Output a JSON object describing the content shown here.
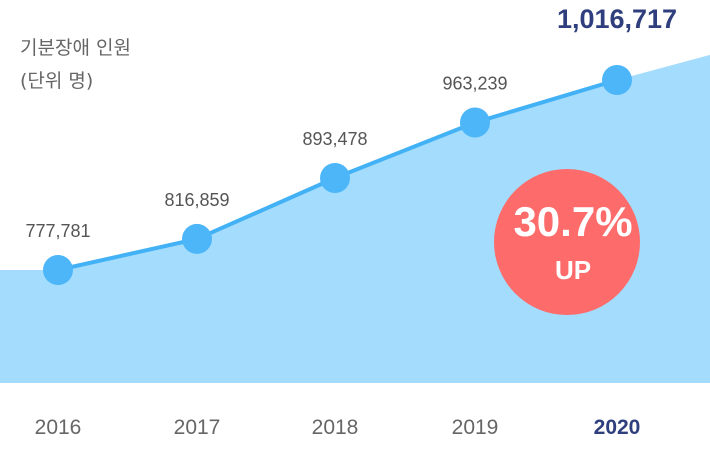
{
  "chart_data": {
    "type": "area",
    "title": "",
    "ylabel": "기분장애 인원",
    "yunit": "(단위 명)",
    "categories": [
      "2016",
      "2017",
      "2018",
      "2019",
      "2020"
    ],
    "values": [
      777781,
      816859,
      893478,
      963239,
      1016717
    ],
    "value_labels": [
      "777,781",
      "816,859",
      "893,478",
      "963,239",
      "1,016,717"
    ],
    "highlight_index": 4,
    "badge": {
      "percent": "30.7%",
      "text": "UP"
    },
    "colors": {
      "area": "#a3dcfc",
      "line": "#42b1f5",
      "point": "#4cb6f9",
      "badge": "#fd6b6b",
      "highlight": "#2f3f7e"
    }
  }
}
